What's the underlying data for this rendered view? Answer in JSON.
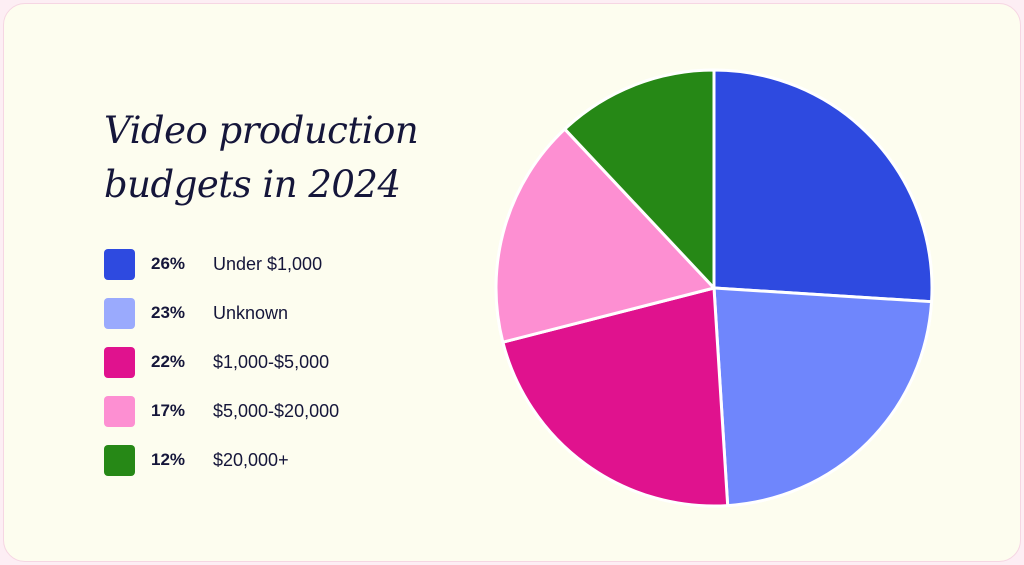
{
  "chart_data": {
    "type": "pie",
    "title": "Video production budgets in 2024",
    "slices": [
      {
        "label": "Under $1,000",
        "value": 26,
        "value_label": "26%",
        "color": "#2e4ae0"
      },
      {
        "label": "Unknown",
        "value": 23,
        "value_label": "23%",
        "color": "#6f86fc"
      },
      {
        "label": "$1,000-$5,000",
        "value": 22,
        "value_label": "22%",
        "color": "#e0128e"
      },
      {
        "label": "$5,000-$20,000",
        "value": 17,
        "value_label": "17%",
        "color": "#fd8fd2"
      },
      {
        "label": "$20,000+",
        "value": 12,
        "value_label": "12%",
        "color": "#268816"
      }
    ],
    "legend_swatch_colors": [
      "#2e4ae0",
      "#9aaafd",
      "#e0128e",
      "#fd8fd2",
      "#268816"
    ],
    "legend_position": "left",
    "start_angle": "top, clockwise"
  }
}
